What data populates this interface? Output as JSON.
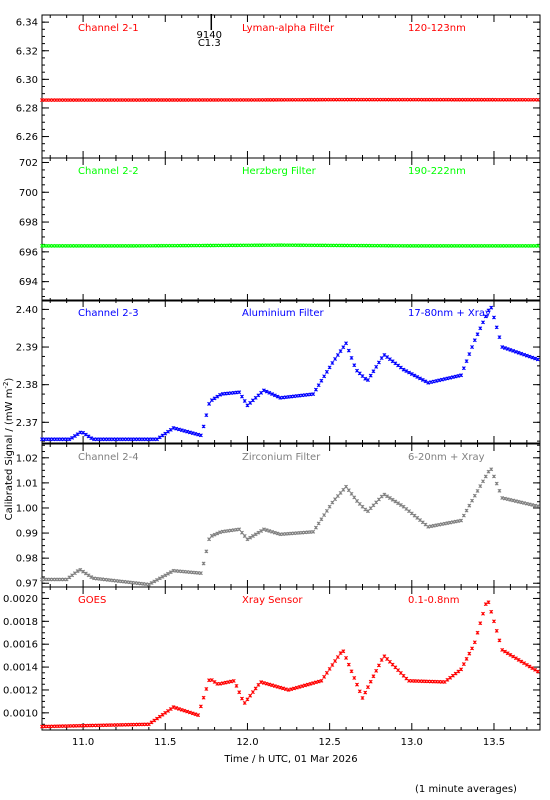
{
  "chart_data": {
    "type": "scatter",
    "x_axis": {
      "label": "Time / h UTC, 01 Mar 2026",
      "range": [
        10.75,
        13.78
      ],
      "ticks": [
        "11.0",
        "11.5",
        "12.0",
        "12.5",
        "13.0",
        "13.5"
      ]
    },
    "y_axis_label": "Calibrated Signal / (mW m",
    "y_axis_label_sup": "-2",
    "y_axis_label_end": ")",
    "footnote": "(1 minute averages)",
    "flare": {
      "x": 11.78,
      "id": "9140",
      "class": "C1.3"
    },
    "panels": [
      {
        "channel": "Channel 2-1",
        "filter": "Lyman-alpha Filter",
        "band": "120-123nm",
        "color": "#ff0000",
        "ylim": [
          6.245,
          6.345
        ],
        "ticks": [
          "6.26",
          "6.28",
          "6.30",
          "6.32",
          "6.34"
        ],
        "keypoints": [
          [
            10.75,
            6.2855
          ],
          [
            12.0,
            6.2856
          ],
          [
            12.6,
            6.2858
          ],
          [
            13.78,
            6.2857
          ]
        ]
      },
      {
        "channel": "Channel 2-2",
        "filter": "Herzberg Filter",
        "band": "190-222nm",
        "color": "#00ff00",
        "ylim": [
          692.7,
          702.3
        ],
        "ticks": [
          "694",
          "696",
          "698",
          "700",
          "702"
        ],
        "keypoints": [
          [
            10.75,
            696.4
          ],
          [
            11.3,
            696.4
          ],
          [
            12.2,
            696.45
          ],
          [
            13.0,
            696.4
          ],
          [
            13.78,
            696.4
          ]
        ]
      },
      {
        "channel": "Channel 2-3",
        "filter": "Aluminium Filter",
        "band": "17-80nm + Xray",
        "color": "#0000ff",
        "ylim": [
          2.3645,
          2.4025
        ],
        "ticks": [
          "2.37",
          "2.38",
          "2.39",
          "2.40"
        ],
        "keypoints": [
          [
            10.75,
            2.3655
          ],
          [
            10.92,
            2.3655
          ],
          [
            10.99,
            2.3675
          ],
          [
            11.06,
            2.3655
          ],
          [
            11.45,
            2.3655
          ],
          [
            11.55,
            2.3685
          ],
          [
            11.72,
            2.3665
          ],
          [
            11.77,
            2.3755
          ],
          [
            11.84,
            2.3775
          ],
          [
            11.95,
            2.378
          ],
          [
            12.0,
            2.3745
          ],
          [
            12.1,
            2.3785
          ],
          [
            12.2,
            2.3765
          ],
          [
            12.4,
            2.3775
          ],
          [
            12.52,
            2.386
          ],
          [
            12.6,
            2.391
          ],
          [
            12.66,
            2.384
          ],
          [
            12.73,
            2.381
          ],
          [
            12.83,
            2.388
          ],
          [
            12.95,
            2.384
          ],
          [
            13.1,
            2.3805
          ],
          [
            13.3,
            2.3825
          ],
          [
            13.38,
            2.3915
          ],
          [
            13.48,
            2.401
          ],
          [
            13.55,
            2.39
          ],
          [
            13.78,
            2.3865
          ]
        ]
      },
      {
        "channel": "Channel 2-4",
        "filter": "Zirconium Filter",
        "band": "6-20nm + Xray",
        "color": "#808080",
        "ylim": [
          0.9685,
          1.0255
        ],
        "ticks": [
          "0.97",
          "0.98",
          "0.99",
          "1.00",
          "1.01",
          "1.02"
        ],
        "keypoints": [
          [
            10.75,
            0.9715
          ],
          [
            10.9,
            0.9715
          ],
          [
            10.98,
            0.9755
          ],
          [
            11.06,
            0.972
          ],
          [
            11.4,
            0.9695
          ],
          [
            11.55,
            0.975
          ],
          [
            11.72,
            0.974
          ],
          [
            11.77,
            0.9885
          ],
          [
            11.84,
            0.9905
          ],
          [
            11.95,
            0.9915
          ],
          [
            12.0,
            0.9875
          ],
          [
            12.1,
            0.9915
          ],
          [
            12.2,
            0.9895
          ],
          [
            12.4,
            0.9905
          ],
          [
            12.52,
            1.0025
          ],
          [
            12.6,
            1.0085
          ],
          [
            12.67,
            1.0025
          ],
          [
            12.73,
            0.9985
          ],
          [
            12.83,
            1.0055
          ],
          [
            12.95,
            1.0005
          ],
          [
            13.1,
            0.9925
          ],
          [
            13.3,
            0.995
          ],
          [
            13.38,
            1.0045
          ],
          [
            13.48,
            1.016
          ],
          [
            13.55,
            1.004
          ],
          [
            13.78,
            1.0005
          ]
        ]
      },
      {
        "channel": "GOES",
        "filter": "Xray Sensor",
        "band": "0.1-0.8nm",
        "color": "#ff0000",
        "ylim": [
          0.00085,
          0.0021
        ],
        "ticks": [
          "0.0010",
          "0.0012",
          "0.0014",
          "0.0016",
          "0.0018",
          "0.0020"
        ],
        "keypoints": [
          [
            10.75,
            0.00088
          ],
          [
            11.4,
            0.0009
          ],
          [
            11.55,
            0.00105
          ],
          [
            11.7,
            0.00098
          ],
          [
            11.77,
            0.0013
          ],
          [
            11.82,
            0.00125
          ],
          [
            11.92,
            0.00128
          ],
          [
            11.98,
            0.00108
          ],
          [
            12.08,
            0.00127
          ],
          [
            12.25,
            0.0012
          ],
          [
            12.45,
            0.00128
          ],
          [
            12.58,
            0.00155
          ],
          [
            12.7,
            0.00113
          ],
          [
            12.83,
            0.0015
          ],
          [
            12.98,
            0.00128
          ],
          [
            13.2,
            0.00127
          ],
          [
            13.3,
            0.00138
          ],
          [
            13.38,
            0.0016
          ],
          [
            13.46,
            0.002
          ],
          [
            13.55,
            0.00155
          ],
          [
            13.78,
            0.00135
          ]
        ]
      }
    ]
  }
}
